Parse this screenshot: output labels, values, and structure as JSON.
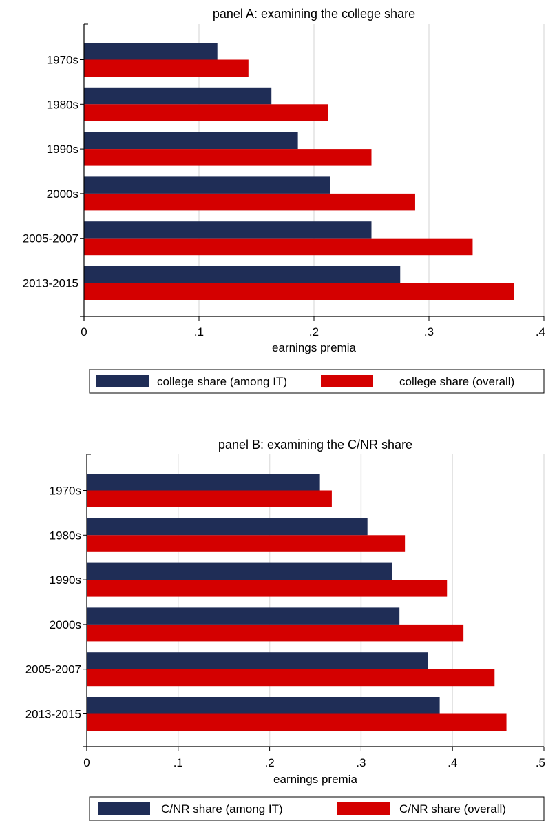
{
  "chart_data": [
    {
      "type": "bar",
      "orientation": "horizontal",
      "title": "panel A: examining the college share",
      "xlabel": "earnings premia",
      "ylabel": "",
      "xlim": [
        0,
        0.4
      ],
      "xticks": [
        {
          "value": 0,
          "label": "0"
        },
        {
          "value": 0.1,
          "label": ".1"
        },
        {
          "value": 0.2,
          "label": ".2"
        },
        {
          "value": 0.3,
          "label": ".3"
        },
        {
          "value": 0.4,
          "label": ".4"
        }
      ],
      "grid": true,
      "legend_position": "bottom",
      "categories": [
        "1970s",
        "1980s",
        "1990s",
        "2000s",
        "2005-2007",
        "2013-2015"
      ],
      "series": [
        {
          "name": "college share (among IT)",
          "color": "#1f2d56",
          "values": [
            0.116,
            0.163,
            0.186,
            0.214,
            0.25,
            0.275
          ]
        },
        {
          "name": "college share (overall)",
          "color": "#d40000",
          "values": [
            0.143,
            0.212,
            0.25,
            0.288,
            0.338,
            0.374
          ]
        }
      ]
    },
    {
      "type": "bar",
      "orientation": "horizontal",
      "title": "panel B: examining the C/NR share",
      "xlabel": "earnings premia",
      "ylabel": "",
      "xlim": [
        0,
        0.5
      ],
      "xticks": [
        {
          "value": 0,
          "label": "0"
        },
        {
          "value": 0.1,
          "label": ".1"
        },
        {
          "value": 0.2,
          "label": ".2"
        },
        {
          "value": 0.3,
          "label": ".3"
        },
        {
          "value": 0.4,
          "label": ".4"
        },
        {
          "value": 0.5,
          "label": ".5"
        }
      ],
      "grid": true,
      "legend_position": "bottom",
      "categories": [
        "1970s",
        "1980s",
        "1990s",
        "2000s",
        "2005-2007",
        "2013-2015"
      ],
      "series": [
        {
          "name": "C/NR share (among IT)",
          "color": "#1f2d56",
          "values": [
            0.255,
            0.307,
            0.334,
            0.342,
            0.373,
            0.386
          ]
        },
        {
          "name": "C/NR share (overall)",
          "color": "#d40000",
          "values": [
            0.268,
            0.348,
            0.394,
            0.412,
            0.446,
            0.459
          ]
        }
      ]
    }
  ]
}
